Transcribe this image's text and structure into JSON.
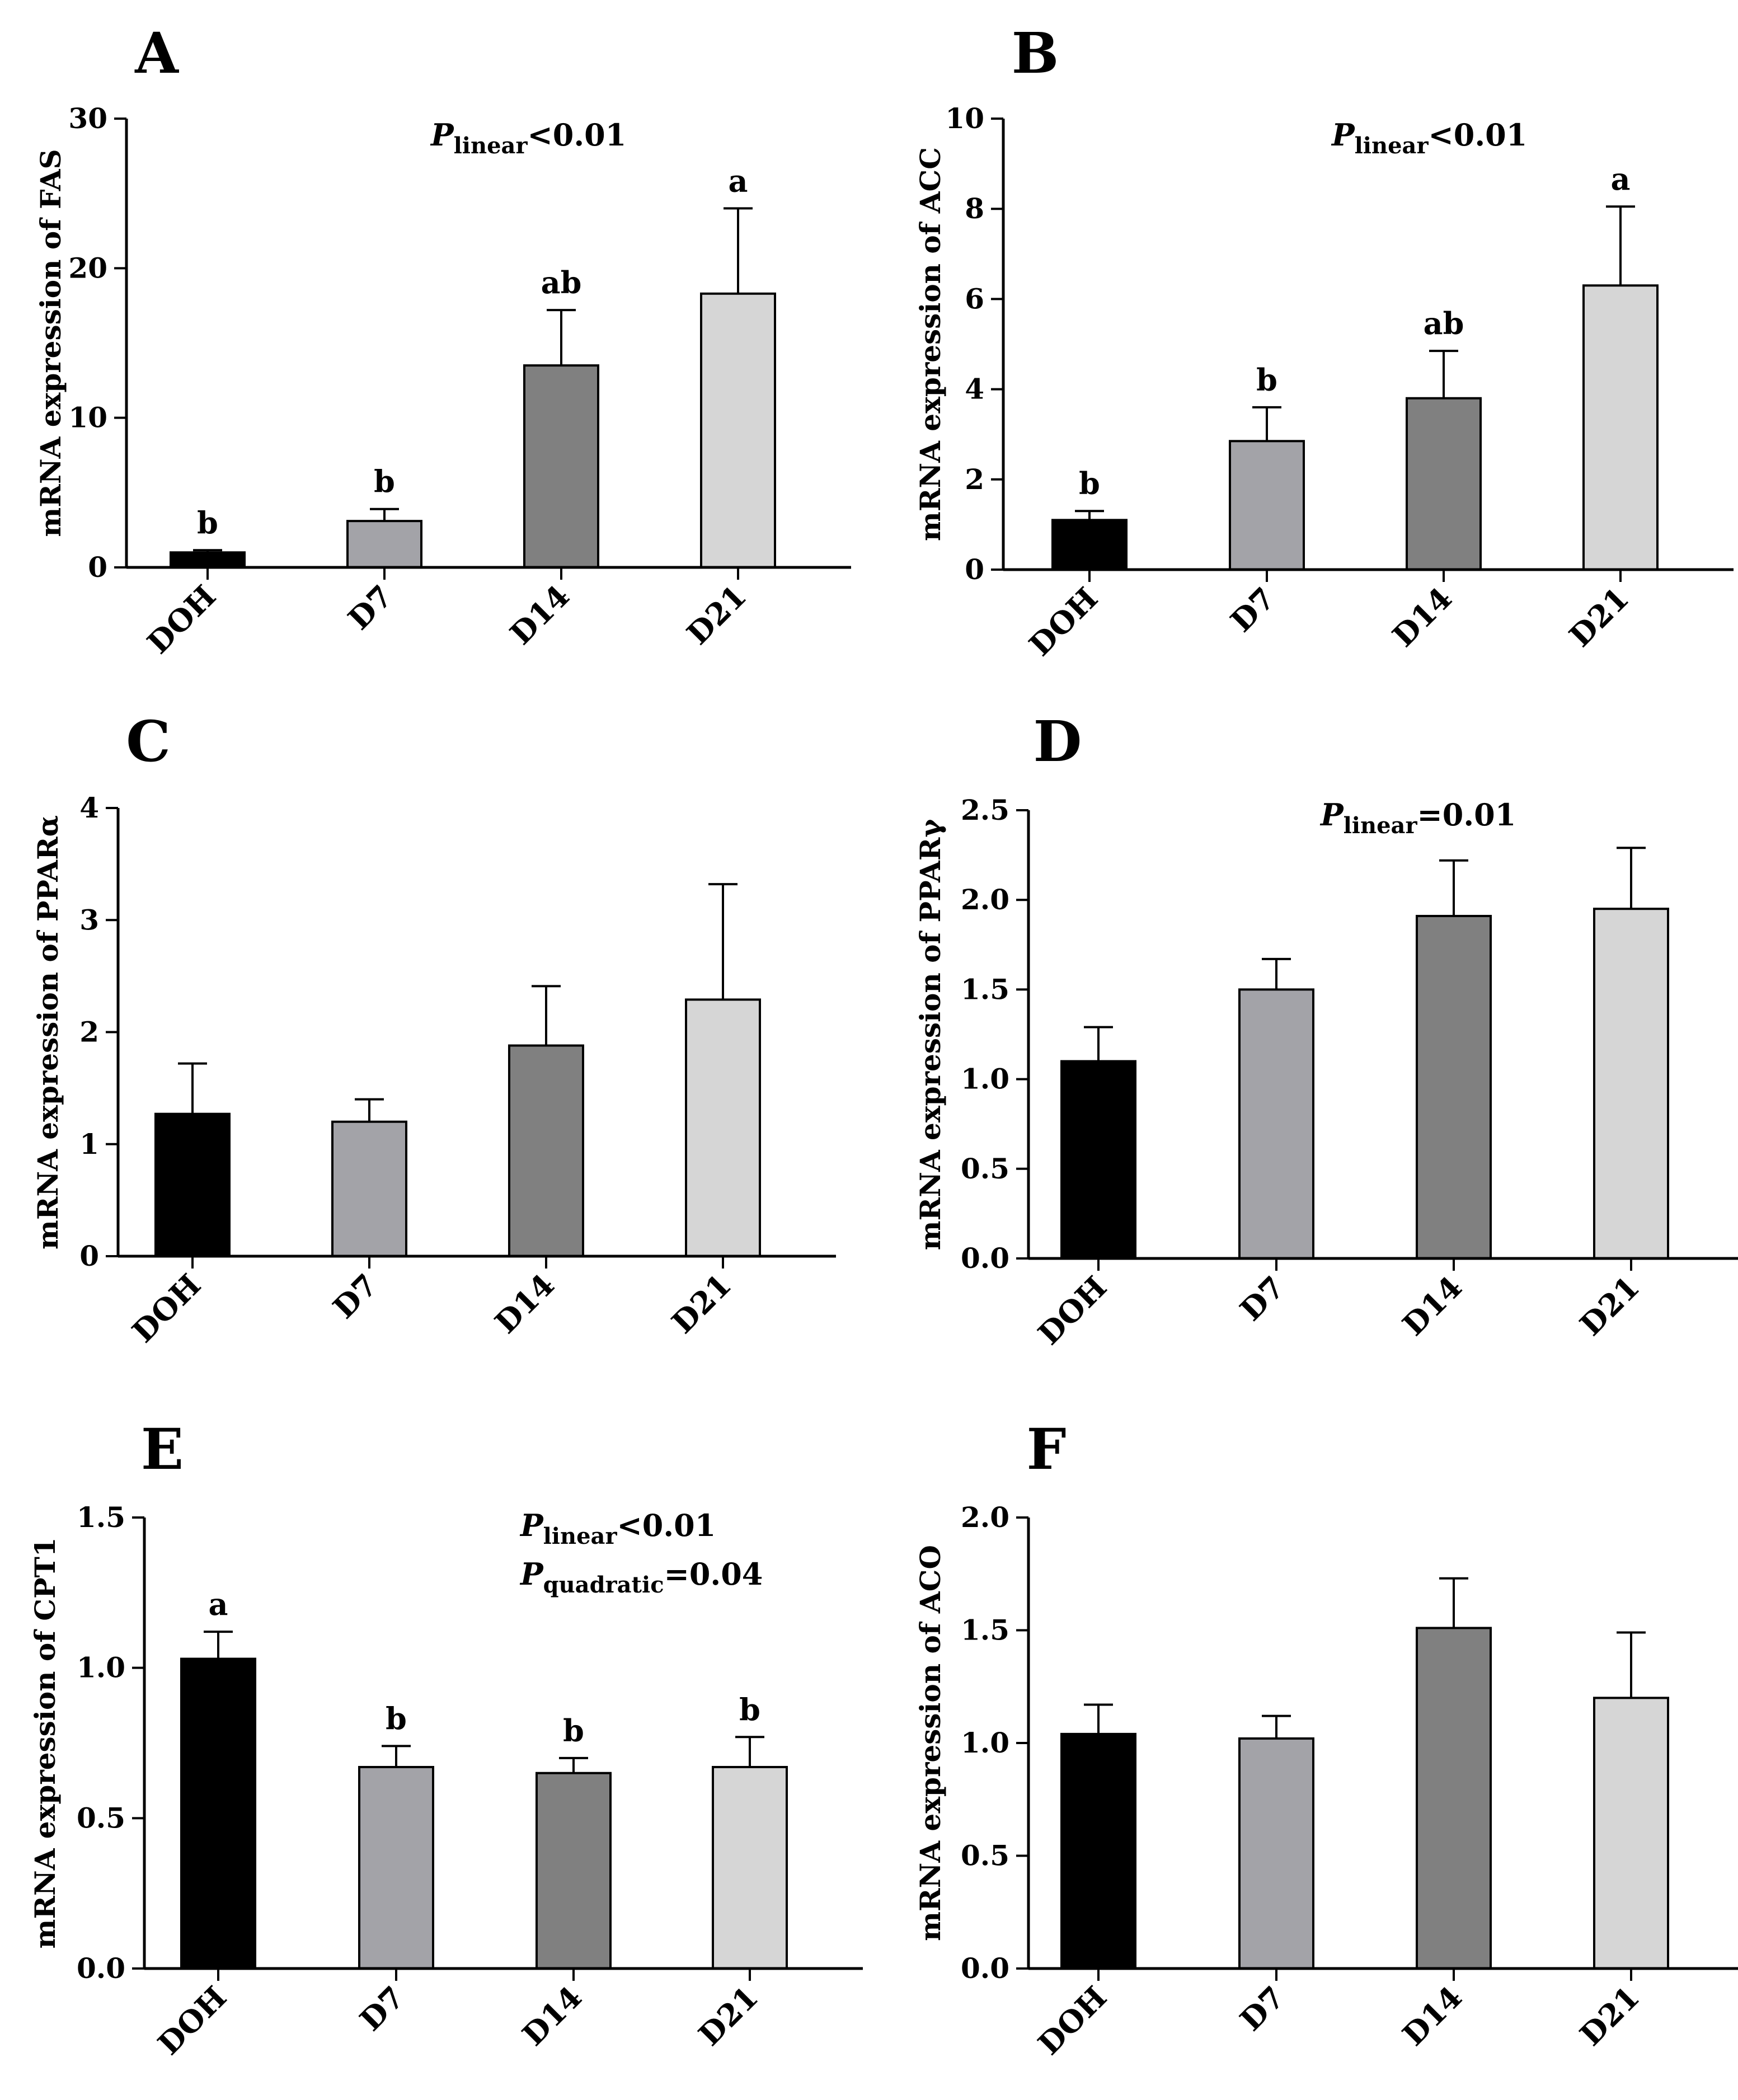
{
  "colors": {
    "DOH": "#000000",
    "D7": "#a3a3a8",
    "D14": "#808080",
    "D21": "#d6d6d6",
    "axis": "#000000"
  },
  "chart_data": [
    {
      "panel": "A",
      "type": "bar",
      "ylabel": "mRNA expression of FAS",
      "categories": [
        "DOH",
        "D7",
        "D14",
        "D21"
      ],
      "values": [
        1.0,
        3.1,
        13.5,
        18.3
      ],
      "errors": [
        0.15,
        0.8,
        3.7,
        5.7
      ],
      "letters": [
        "b",
        "b",
        "ab",
        "a"
      ],
      "ylim": [
        0,
        30
      ],
      "yticks": [
        "0",
        "10",
        "20",
        "30"
      ],
      "annotation": [
        {
          "p": "P",
          "sub": "linear",
          "rest": "<0.01"
        }
      ]
    },
    {
      "panel": "B",
      "type": "bar",
      "ylabel": "mRNA expression of ACC",
      "categories": [
        "DOH",
        "D7",
        "D14",
        "D21"
      ],
      "values": [
        1.1,
        2.85,
        3.8,
        6.3
      ],
      "errors": [
        0.2,
        0.75,
        1.05,
        1.75
      ],
      "letters": [
        "b",
        "b",
        "ab",
        "a"
      ],
      "ylim": [
        0,
        10
      ],
      "yticks": [
        "0",
        "2",
        "4",
        "6",
        "8",
        "10"
      ],
      "annotation": [
        {
          "p": "P",
          "sub": "linear",
          "rest": "<0.01"
        }
      ]
    },
    {
      "panel": "C",
      "type": "bar",
      "ylabel": "mRNA expression of PPARα",
      "categories": [
        "DOH",
        "D7",
        "D14",
        "D21"
      ],
      "values": [
        1.27,
        1.2,
        1.88,
        2.29
      ],
      "errors": [
        0.45,
        0.2,
        0.53,
        1.03
      ],
      "letters": [
        "",
        "",
        "",
        ""
      ],
      "ylim": [
        0,
        4
      ],
      "yticks": [
        "0",
        "1",
        "2",
        "3",
        "4"
      ],
      "annotation": []
    },
    {
      "panel": "D",
      "type": "bar",
      "ylabel": "mRNA expression of PPARγ",
      "categories": [
        "DOH",
        "D7",
        "D14",
        "D21"
      ],
      "values": [
        1.1,
        1.5,
        1.91,
        1.95
      ],
      "errors": [
        0.19,
        0.17,
        0.31,
        0.34
      ],
      "letters": [
        "",
        "",
        "",
        ""
      ],
      "ylim": [
        0,
        2.5
      ],
      "yticks": [
        "0.0",
        "0.5",
        "1.0",
        "1.5",
        "2.0",
        "2.5"
      ],
      "annotation": [
        {
          "p": "P",
          "sub": "linear",
          "rest": "=0.01"
        }
      ]
    },
    {
      "panel": "E",
      "type": "bar",
      "ylabel": "mRNA expression of CPT1",
      "categories": [
        "DOH",
        "D7",
        "D14",
        "D21"
      ],
      "values": [
        1.03,
        0.67,
        0.65,
        0.67
      ],
      "errors": [
        0.09,
        0.07,
        0.05,
        0.1
      ],
      "letters": [
        "a",
        "b",
        "b",
        "b"
      ],
      "ylim": [
        0,
        1.5
      ],
      "yticks": [
        "0.0",
        "0.5",
        "1.0",
        "1.5"
      ],
      "annotation": [
        {
          "p": "P",
          "sub": "linear",
          "rest": "<0.01"
        },
        {
          "p": "P",
          "sub": "quadratic",
          "rest": "=0.04"
        }
      ]
    },
    {
      "panel": "F",
      "type": "bar",
      "ylabel": "mRNA expression of ACO",
      "categories": [
        "DOH",
        "D7",
        "D14",
        "D21"
      ],
      "values": [
        1.04,
        1.02,
        1.51,
        1.2
      ],
      "errors": [
        0.13,
        0.1,
        0.22,
        0.29
      ],
      "letters": [
        "",
        "",
        "",
        ""
      ],
      "ylim": [
        0,
        2.0
      ],
      "yticks": [
        "0.0",
        "0.5",
        "1.0",
        "1.5",
        "2.0"
      ],
      "annotation": []
    }
  ]
}
